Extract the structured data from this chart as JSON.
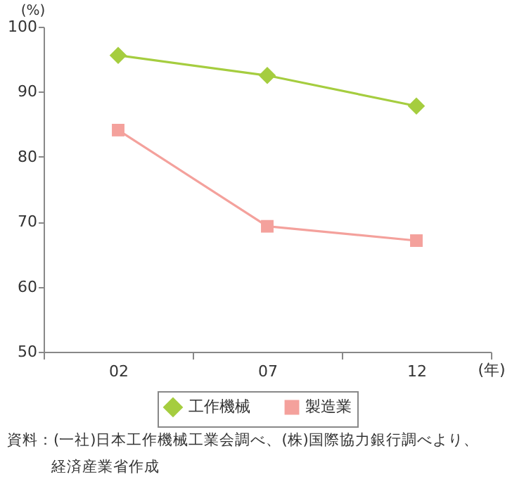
{
  "chart_data": {
    "type": "line",
    "categories": [
      "02",
      "07",
      "12"
    ],
    "xlabel": "(年)",
    "ylabel": "(%)",
    "ylim": [
      50,
      100
    ],
    "yticks": [
      50,
      60,
      70,
      80,
      90,
      100
    ],
    "grid": false,
    "legend": "bottom",
    "series": [
      {
        "name": "工作機械",
        "color": "#a5cd3f",
        "marker": "diamond",
        "values": [
          95.6,
          92.5,
          87.8
        ]
      },
      {
        "name": "製造業",
        "color": "#f4a19c",
        "marker": "square",
        "values": [
          84.1,
          69.3,
          67.1
        ]
      }
    ],
    "annotations": [
      "資料：(一社)日本工作機械工業会調べ、(株)国際協力銀行調べより、経済産業省作成"
    ]
  }
}
